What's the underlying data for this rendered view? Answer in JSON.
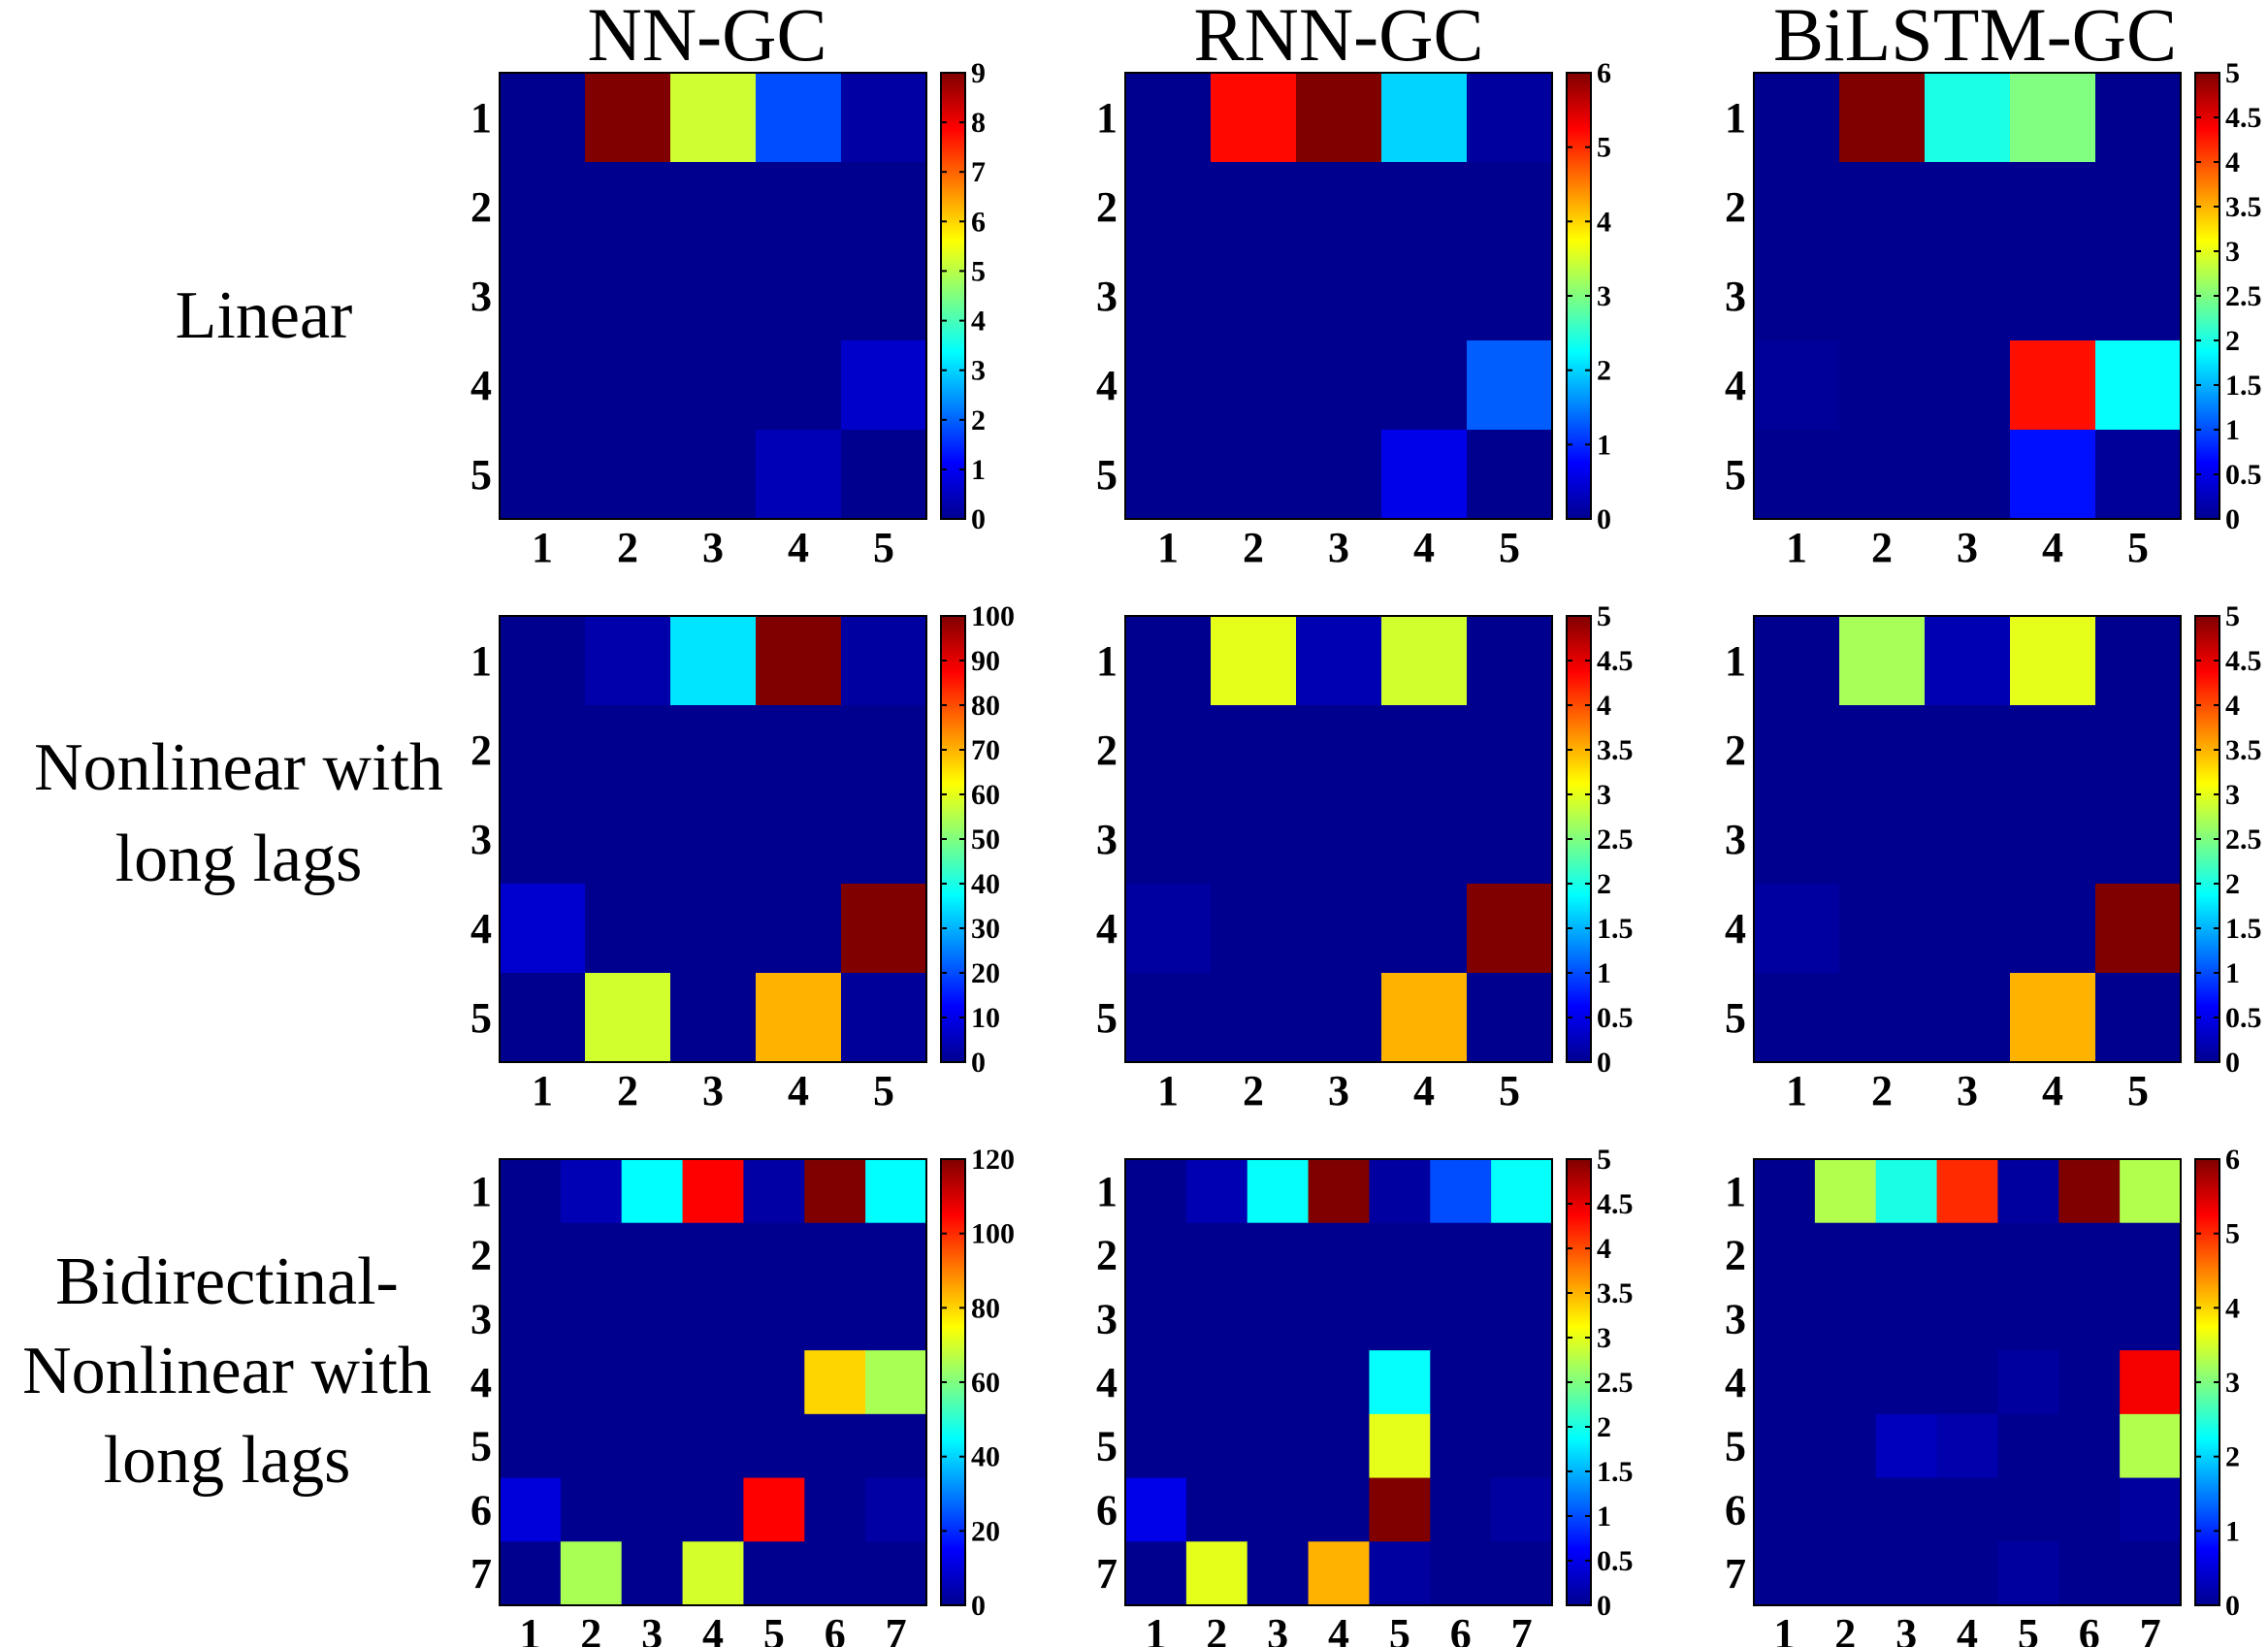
{
  "figure": {
    "column_titles": [
      "NN-GC",
      "RNN-GC",
      "BiLSTM-GC"
    ],
    "row_labels": [
      [
        "Linear"
      ],
      [
        "Nonlinear with",
        "long lags"
      ],
      [
        "Bidirectinal-",
        "Nonlinear with",
        "long lags"
      ]
    ]
  },
  "colors": {
    "colormap": "jet",
    "stops": [
      "#00008f",
      "#0000ff",
      "#00ffff",
      "#ffff00",
      "#ff0000",
      "#800000"
    ]
  },
  "chart_data": [
    {
      "type": "heatmap",
      "title": "NN-GC",
      "row": "Linear",
      "n": 5,
      "vmin": 0,
      "vmax": 9,
      "colorbar_ticks": [
        "0",
        "1",
        "2",
        "3",
        "4",
        "5",
        "6",
        "7",
        "8",
        "9"
      ],
      "values": [
        [
          0,
          9,
          5.2,
          1.8,
          0.2
        ],
        [
          0,
          0,
          0,
          0,
          0
        ],
        [
          0,
          0,
          0,
          0,
          0
        ],
        [
          0,
          0,
          0,
          0,
          0.6
        ],
        [
          0,
          0,
          0,
          0.4,
          0
        ]
      ]
    },
    {
      "type": "heatmap",
      "title": "RNN-GC",
      "row": "Linear",
      "n": 5,
      "vmin": 0,
      "vmax": 6,
      "colorbar_ticks": [
        "0",
        "1",
        "2",
        "3",
        "4",
        "5",
        "6"
      ],
      "values": [
        [
          0,
          5.2,
          6,
          2,
          0.1
        ],
        [
          0,
          0,
          0,
          0,
          0
        ],
        [
          0,
          0,
          0,
          0,
          0
        ],
        [
          0,
          0,
          0,
          0,
          1.3
        ],
        [
          0,
          0,
          0,
          0.6,
          0
        ]
      ]
    },
    {
      "type": "heatmap",
      "title": "BiLSTM-GC",
      "row": "Linear",
      "n": 5,
      "vmin": 0,
      "vmax": 5,
      "colorbar_ticks": [
        "0",
        "0.5",
        "1",
        "1.5",
        "2",
        "2.5",
        "3",
        "3.5",
        "4",
        "4.5",
        "5"
      ],
      "values": [
        [
          0,
          5,
          2,
          2.5,
          0
        ],
        [
          0,
          0,
          0,
          0,
          0
        ],
        [
          0,
          0,
          0,
          0,
          0
        ],
        [
          0.05,
          0,
          0,
          4.3,
          1.9
        ],
        [
          0,
          0,
          0,
          0.7,
          0.05
        ]
      ]
    },
    {
      "type": "heatmap",
      "title": "NN-GC",
      "row": "Nonlinear with long lags",
      "n": 5,
      "vmin": 0,
      "vmax": 100,
      "colorbar_ticks": [
        "0",
        "10",
        "20",
        "30",
        "40",
        "50",
        "60",
        "70",
        "80",
        "90",
        "100"
      ],
      "values": [
        [
          0,
          3,
          35,
          100,
          2
        ],
        [
          0,
          0,
          0,
          0,
          0
        ],
        [
          0,
          0,
          0,
          0,
          0
        ],
        [
          7,
          0,
          0,
          0,
          100
        ],
        [
          0,
          58,
          0,
          70,
          1
        ]
      ]
    },
    {
      "type": "heatmap",
      "title": "RNN-GC",
      "row": "Nonlinear with long lags",
      "n": 5,
      "vmin": 0,
      "vmax": 5,
      "colorbar_ticks": [
        "0",
        "0.5",
        "1",
        "1.5",
        "2",
        "2.5",
        "3",
        "3.5",
        "4",
        "4.5",
        "5"
      ],
      "values": [
        [
          0,
          3,
          0.2,
          2.9,
          0
        ],
        [
          0,
          0,
          0,
          0,
          0
        ],
        [
          0,
          0,
          0,
          0,
          0
        ],
        [
          0.1,
          0,
          0,
          0,
          5
        ],
        [
          0,
          0,
          0,
          3.5,
          0
        ]
      ]
    },
    {
      "type": "heatmap",
      "title": "BiLSTM-GC",
      "row": "Nonlinear with long lags",
      "n": 5,
      "vmin": 0,
      "vmax": 5,
      "colorbar_ticks": [
        "0",
        "0.5",
        "1",
        "1.5",
        "2",
        "2.5",
        "3",
        "3.5",
        "4",
        "4.5",
        "5"
      ],
      "values": [
        [
          0,
          2.7,
          0.2,
          3,
          0
        ],
        [
          0,
          0,
          0,
          0,
          0
        ],
        [
          0,
          0,
          0,
          0,
          0
        ],
        [
          0.1,
          0,
          0,
          0,
          5
        ],
        [
          0,
          0,
          0,
          3.5,
          0
        ]
      ]
    },
    {
      "type": "heatmap",
      "title": "NN-GC",
      "row": "Bidirectinal-Nonlinear with long lags",
      "n": 7,
      "vmin": 0,
      "vmax": 120,
      "colorbar_ticks": [
        "0",
        "20",
        "40",
        "60",
        "80",
        "100",
        "120"
      ],
      "values": [
        [
          0,
          5,
          45,
          105,
          3,
          125,
          45
        ],
        [
          0,
          0,
          0,
          0,
          0,
          0,
          0
        ],
        [
          0,
          0,
          0,
          0,
          0,
          0,
          0
        ],
        [
          0,
          0,
          0,
          0,
          0,
          80,
          65
        ],
        [
          0,
          0,
          0,
          0,
          0,
          0,
          0
        ],
        [
          10,
          0,
          0,
          0,
          105,
          0,
          3
        ],
        [
          0,
          65,
          0,
          70,
          0,
          0,
          0
        ]
      ]
    },
    {
      "type": "heatmap",
      "title": "RNN-GC",
      "row": "Bidirectinal-Nonlinear with long lags",
      "n": 7,
      "vmin": 0,
      "vmax": 5,
      "colorbar_ticks": [
        "0",
        "0.5",
        "1",
        "1.5",
        "2",
        "2.5",
        "3",
        "3.5",
        "4",
        "4.5",
        "5"
      ],
      "values": [
        [
          0,
          0.2,
          1.9,
          5,
          0.1,
          1,
          1.9
        ],
        [
          0,
          0,
          0,
          0,
          0,
          0,
          0
        ],
        [
          0,
          0,
          0,
          0,
          0,
          0,
          0
        ],
        [
          0,
          0,
          0,
          0,
          1.9,
          0,
          0
        ],
        [
          0,
          0,
          0,
          0,
          3,
          0,
          0
        ],
        [
          0.5,
          0,
          0,
          0,
          5,
          0,
          0.1
        ],
        [
          0,
          3,
          0,
          3.5,
          0.1,
          0,
          0
        ]
      ]
    },
    {
      "type": "heatmap",
      "title": "BiLSTM-GC",
      "row": "Bidirectinal-Nonlinear with long lags",
      "n": 7,
      "vmin": 0,
      "vmax": 6,
      "colorbar_ticks": [
        "0",
        "1",
        "2",
        "3",
        "4",
        "5",
        "6"
      ],
      "values": [
        [
          0,
          3.3,
          2.4,
          5,
          0.1,
          6.2,
          3.3
        ],
        [
          0,
          0,
          0,
          0,
          0,
          0,
          0
        ],
        [
          0,
          0,
          0,
          0,
          0,
          0,
          0
        ],
        [
          0,
          0,
          0,
          0,
          0.1,
          0,
          5.3
        ],
        [
          0,
          0,
          0.3,
          0.2,
          0,
          0,
          3.3
        ],
        [
          0,
          0,
          0,
          0,
          0,
          0,
          0.1
        ],
        [
          0,
          0,
          0,
          0,
          0.1,
          0,
          0
        ]
      ]
    }
  ]
}
